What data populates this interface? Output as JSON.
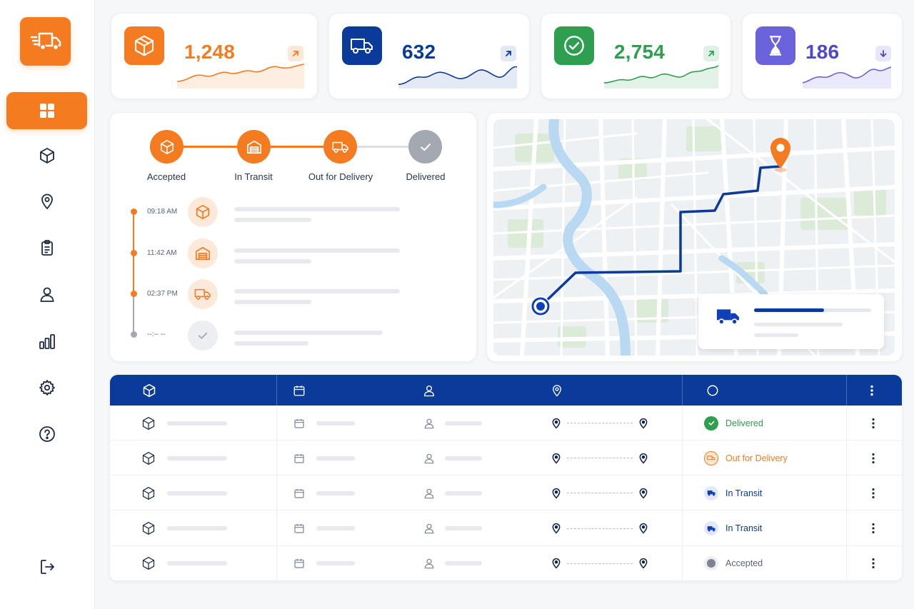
{
  "colors": {
    "orange": "#f47b20",
    "navy": "#0a3a9a",
    "green": "#2e9e4f",
    "purple": "#6a63dc",
    "gray": "#9aa0ab"
  },
  "sidebar": {
    "logo_icon": "truck-icon",
    "items": [
      {
        "icon": "dashboard-grid-icon",
        "active": true
      },
      {
        "icon": "box-icon",
        "active": false
      },
      {
        "icon": "map-pin-icon",
        "active": false
      },
      {
        "icon": "clipboard-icon",
        "active": false
      },
      {
        "icon": "user-icon",
        "active": false
      },
      {
        "icon": "bar-chart-icon",
        "active": false
      },
      {
        "icon": "settings-icon",
        "active": false
      },
      {
        "icon": "help-icon",
        "active": false
      }
    ],
    "logout_icon": "logout-icon"
  },
  "kpis": [
    {
      "value": "1,248",
      "icon": "box-icon",
      "trend": "up",
      "color": "#f47b20"
    },
    {
      "value": "632",
      "icon": "truck-icon",
      "trend": "up",
      "color": "#0a3a9a"
    },
    {
      "value": "2,754",
      "icon": "check-circle-icon",
      "trend": "up",
      "color": "#2e9e4f"
    },
    {
      "value": "186",
      "icon": "hourglass-icon",
      "trend": "down",
      "color": "#6a63dc"
    }
  ],
  "tracking": {
    "steps": [
      {
        "label": "Accepted",
        "icon": "box-icon",
        "state": "done"
      },
      {
        "label": "In Transit",
        "icon": "warehouse-icon",
        "state": "done"
      },
      {
        "label": "Out for Delivery",
        "icon": "truck-icon",
        "state": "done"
      },
      {
        "label": "Delivered",
        "icon": "check-icon",
        "state": "pending"
      }
    ],
    "timeline": [
      {
        "time": "09:18 AM",
        "icon": "box-icon"
      },
      {
        "time": "11:42 AM",
        "icon": "warehouse-icon"
      },
      {
        "time": "02:37 PM",
        "icon": "truck-icon"
      },
      {
        "time": "--:-- --",
        "icon": "check-icon"
      }
    ]
  },
  "map": {
    "route_progress": 0.6,
    "destination_icon": "map-pin-icon",
    "origin_icon": "location-dot-icon",
    "vehicle_icon": "truck-icon"
  },
  "table": {
    "header_icons": [
      "box-icon",
      "calendar-icon",
      "user-icon",
      "map-pin-icon",
      "status-circle-icon",
      "more-vertical-icon"
    ],
    "rows": [
      {
        "status": "Delivered",
        "status_kind": "delivered"
      },
      {
        "status": "Out for Delivery",
        "status_kind": "out"
      },
      {
        "status": "In Transit",
        "status_kind": "transit"
      },
      {
        "status": "In Transit",
        "status_kind": "transit"
      },
      {
        "status": "Accepted",
        "status_kind": "accepted"
      }
    ]
  }
}
